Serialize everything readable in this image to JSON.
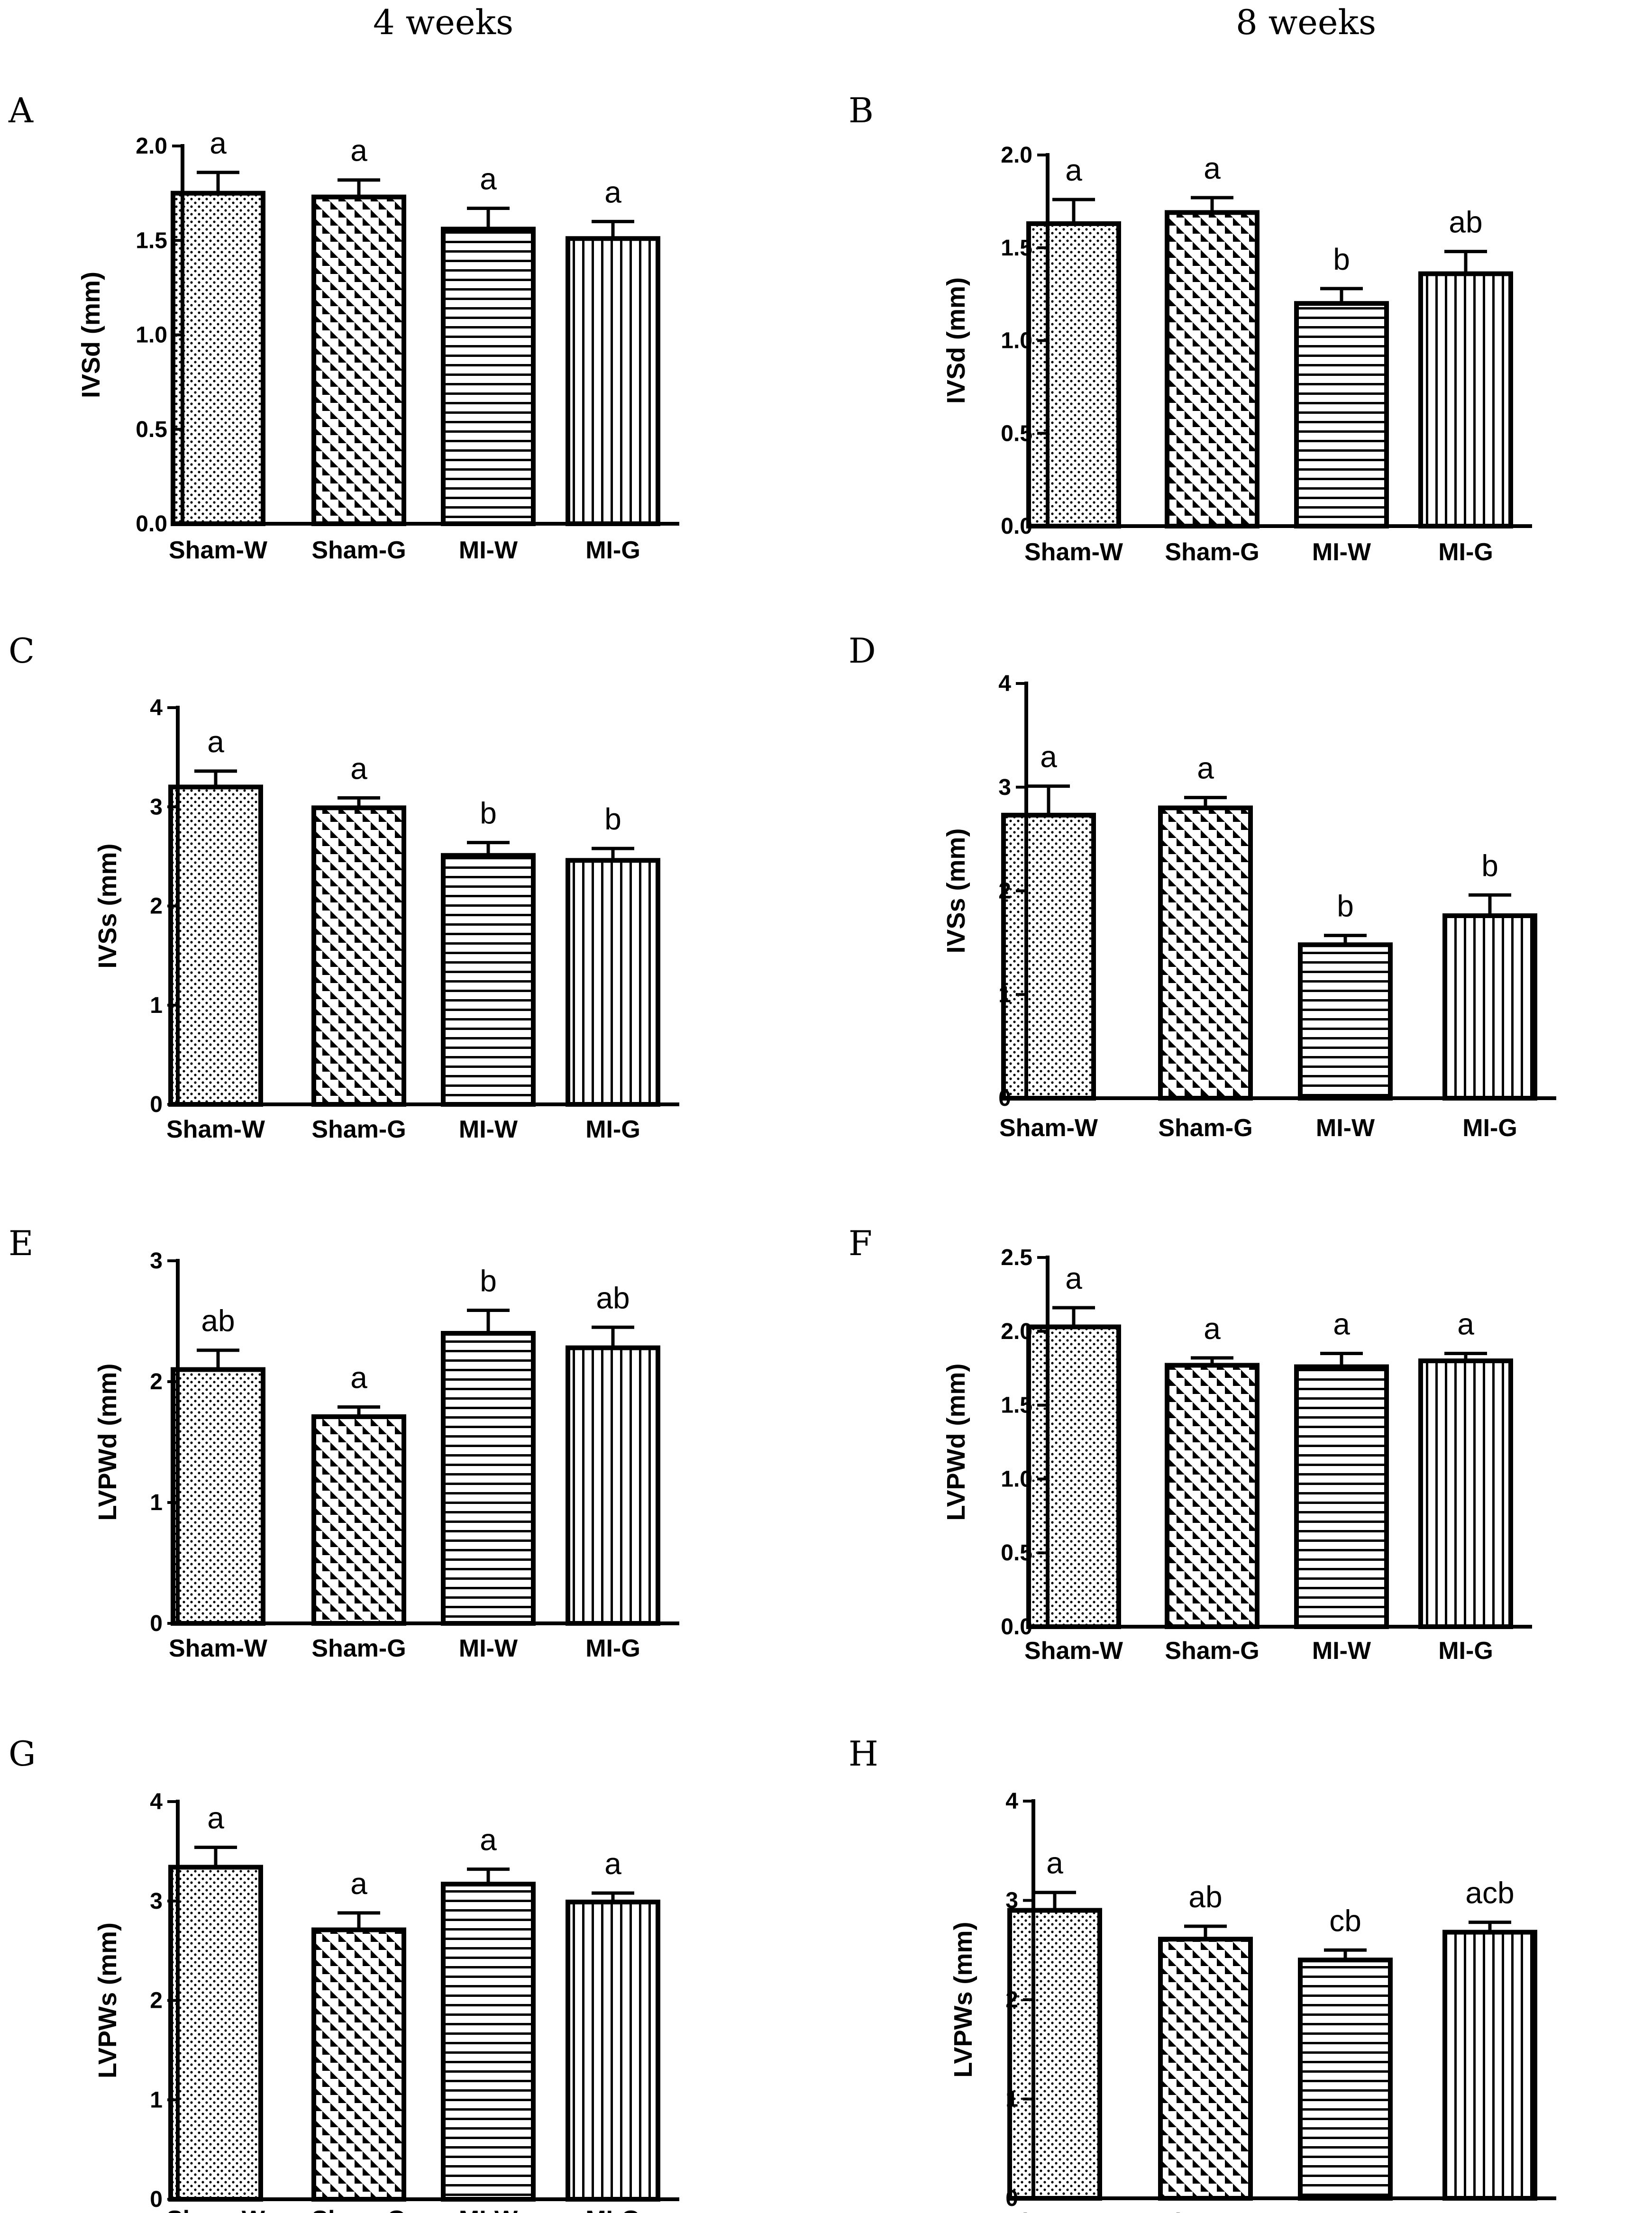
{
  "column_titles": [
    "4 weeks",
    "8 weeks"
  ],
  "chart_data": [
    {
      "panel": "A",
      "type": "bar",
      "title": "4 weeks",
      "categories": [
        "Sham-W",
        "Sham-G",
        "MI-W",
        "MI-G"
      ],
      "values": [
        1.75,
        1.73,
        1.56,
        1.51
      ],
      "errors": [
        0.11,
        0.09,
        0.11,
        0.09
      ],
      "significance": [
        "a",
        "a",
        "a",
        "a"
      ],
      "ylabel": "IVSd (mm)",
      "ylim": [
        0,
        2.0
      ],
      "yticks": [
        0.0,
        0.5,
        1.0,
        1.5,
        2.0
      ],
      "ytick_labels": [
        "0.0",
        "0.5",
        "1.0",
        "1.5",
        "2.0"
      ]
    },
    {
      "panel": "B",
      "type": "bar",
      "title": "8 weeks",
      "categories": [
        "Sham-W",
        "Sham-G",
        "MI-W",
        "MI-G"
      ],
      "values": [
        1.63,
        1.69,
        1.2,
        1.36
      ],
      "errors": [
        0.13,
        0.08,
        0.08,
        0.12
      ],
      "significance": [
        "a",
        "a",
        "b",
        "ab"
      ],
      "ylabel": "IVSd (mm)",
      "ylim": [
        0,
        2.0
      ],
      "yticks": [
        0.0,
        0.5,
        1.0,
        1.5,
        2.0
      ],
      "ytick_labels": [
        "0.0",
        "0.5",
        "1.0",
        "1.5",
        "2.0"
      ]
    },
    {
      "panel": "C",
      "type": "bar",
      "title": "4 weeks",
      "categories": [
        "Sham-W",
        "Sham-G",
        "MI-W",
        "MI-G"
      ],
      "values": [
        3.2,
        2.99,
        2.51,
        2.46
      ],
      "errors": [
        0.16,
        0.1,
        0.13,
        0.12
      ],
      "significance": [
        "a",
        "a",
        "b",
        "b"
      ],
      "ylabel": "IVSs (mm)",
      "ylim": [
        0,
        4
      ],
      "yticks": [
        0,
        1,
        2,
        3,
        4
      ],
      "ytick_labels": [
        "0",
        "1",
        "2",
        "3",
        "4"
      ]
    },
    {
      "panel": "D",
      "type": "bar",
      "title": "8 weeks",
      "categories": [
        "Sham-W",
        "Sham-G",
        "MI-W",
        "MI-G"
      ],
      "values": [
        2.73,
        2.8,
        1.48,
        1.76
      ],
      "errors": [
        0.28,
        0.1,
        0.09,
        0.2
      ],
      "significance": [
        "a",
        "a",
        "b",
        "b"
      ],
      "ylabel": "IVSs (mm)",
      "ylim": [
        0,
        4
      ],
      "yticks": [
        0,
        1,
        2,
        3,
        4
      ],
      "ytick_labels": [
        "0",
        "1",
        "2",
        "3",
        "4"
      ]
    },
    {
      "panel": "E",
      "type": "bar",
      "title": "4 weeks",
      "categories": [
        "Sham-W",
        "Sham-G",
        "MI-W",
        "MI-G"
      ],
      "values": [
        2.1,
        1.71,
        2.4,
        2.28
      ],
      "errors": [
        0.16,
        0.08,
        0.19,
        0.17
      ],
      "significance": [
        "ab",
        "a",
        "b",
        "ab"
      ],
      "ylabel": "LVPWd (mm)",
      "ylim": [
        0,
        3
      ],
      "yticks": [
        0,
        1,
        2,
        3
      ],
      "ytick_labels": [
        "0",
        "1",
        "2",
        "3"
      ]
    },
    {
      "panel": "F",
      "type": "bar",
      "title": "8 weeks",
      "categories": [
        "Sham-W",
        "Sham-G",
        "MI-W",
        "MI-G"
      ],
      "values": [
        2.03,
        1.77,
        1.76,
        1.8
      ],
      "errors": [
        0.13,
        0.05,
        0.09,
        0.05
      ],
      "significance": [
        "a",
        "a",
        "a",
        "a"
      ],
      "ylabel": "LVPWd (mm)",
      "ylim": [
        0,
        2.5
      ],
      "yticks": [
        0.0,
        0.5,
        1.0,
        1.5,
        2.0,
        2.5
      ],
      "ytick_labels": [
        "0.0",
        "0.5",
        "1.0",
        "1.5",
        "2.0",
        "2.5"
      ]
    },
    {
      "panel": "G",
      "type": "bar",
      "title": "4 weeks",
      "categories": [
        "Sham-W",
        "Sham-G",
        "MI-W",
        "MI-G"
      ],
      "values": [
        3.34,
        2.71,
        3.17,
        2.99
      ],
      "errors": [
        0.2,
        0.17,
        0.15,
        0.09
      ],
      "significance": [
        "a",
        "a",
        "a",
        "a"
      ],
      "ylabel": "LVPWs (mm)",
      "ylim": [
        0,
        4
      ],
      "yticks": [
        0,
        1,
        2,
        3,
        4
      ],
      "ytick_labels": [
        "0",
        "1",
        "2",
        "3",
        "4"
      ]
    },
    {
      "panel": "H",
      "type": "bar",
      "title": "8 weeks",
      "categories": [
        "Sham-W",
        "Sham-G",
        "MI-W",
        "MI-G"
      ],
      "values": [
        2.9,
        2.61,
        2.4,
        2.68
      ],
      "errors": [
        0.18,
        0.13,
        0.1,
        0.1
      ],
      "significance": [
        "a",
        "ab",
        "cb",
        "acb"
      ],
      "ylabel": "LVPWs (mm)",
      "ylim": [
        0,
        4
      ],
      "yticks": [
        0,
        1,
        2,
        3,
        4
      ],
      "ytick_labels": [
        "0",
        "1",
        "2",
        "3",
        "4"
      ]
    }
  ]
}
